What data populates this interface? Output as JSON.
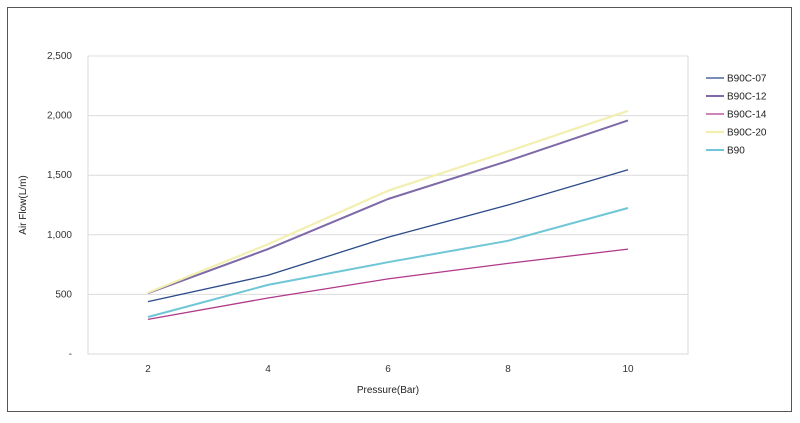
{
  "chart_data": {
    "type": "line",
    "title": "",
    "xlabel": "Pressure(Bar)",
    "ylabel": "Air Flow(L/m)",
    "x": [
      2,
      4,
      6,
      8,
      10
    ],
    "xlim": [
      1,
      11
    ],
    "ylim": [
      0,
      2500
    ],
    "yticks": [
      0,
      500,
      1000,
      1500,
      2000,
      2500
    ],
    "ytick_labels": [
      "-",
      "500",
      "1,000",
      "1,500",
      "2,000",
      "2,500"
    ],
    "xtick_labels": [
      "2",
      "4",
      "6",
      "8",
      "10"
    ],
    "grid": "horizontal",
    "legend_position": "right",
    "series": [
      {
        "name": "B90C-07",
        "color": "#2b4a8a",
        "values": [
          440,
          660,
          980,
          1250,
          1545
        ]
      },
      {
        "name": "B90C-12",
        "color": "#7e6aa8",
        "values": [
          510,
          880,
          1300,
          1620,
          1960
        ]
      },
      {
        "name": "B90C-14",
        "color": "#b03a8a",
        "values": [
          290,
          470,
          630,
          760,
          880
        ]
      },
      {
        "name": "B90C-20",
        "color": "#f3efb0",
        "values": [
          515,
          920,
          1370,
          1700,
          2040
        ]
      },
      {
        "name": "B90",
        "color": "#6ec6d6",
        "values": [
          310,
          580,
          770,
          950,
          1225
        ]
      }
    ]
  }
}
